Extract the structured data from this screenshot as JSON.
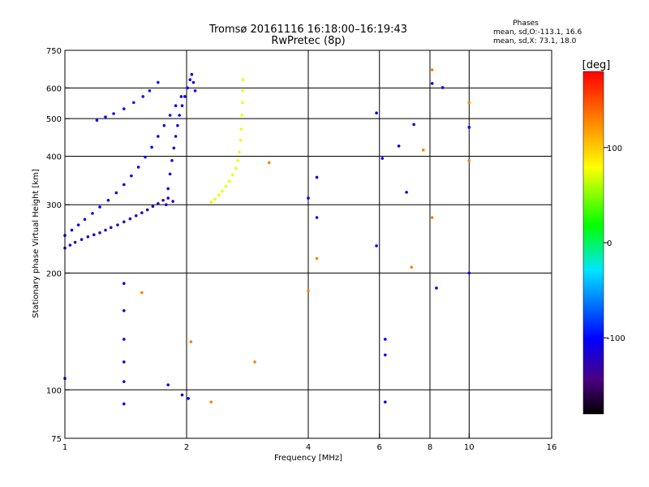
{
  "chart_data": {
    "type": "scatter",
    "title": "Tromsø 20161116 16:18:00–16:19:43",
    "subtitle": "RwPretec (8p)",
    "xlabel": "Frequency [MHz]",
    "ylabel": "Stationary phase Virtual Height [km]",
    "x_scale": "log",
    "y_scale": "log",
    "xlim": [
      1,
      16
    ],
    "ylim": [
      75,
      750
    ],
    "x_ticks": [
      1,
      2,
      4,
      6,
      8,
      10,
      16
    ],
    "x_tick_labels": [
      "1",
      "2",
      "4",
      "6",
      "8",
      "10",
      "16"
    ],
    "y_ticks": [
      75,
      100,
      200,
      300,
      400,
      500,
      600,
      750
    ],
    "y_tick_labels": [
      "75",
      "100",
      "200",
      "300",
      "400",
      "500",
      "600",
      "750"
    ],
    "grid_x": [
      2,
      4,
      6,
      8,
      10
    ],
    "grid_y": [
      100,
      200,
      300,
      400,
      500,
      600
    ],
    "phases_box": {
      "header": "Phases",
      "line1": "mean, sd,O:-113.1, 16.6",
      "line2": "mean, sd,X:  73.1, 18.0"
    },
    "colorbar": {
      "label": "[deg]",
      "range": [
        -180,
        180
      ],
      "ticks": [
        100,
        0,
        -100
      ],
      "tick_labels": [
        "100",
        "0",
        "-100"
      ]
    },
    "series": [
      {
        "trace": "O-mode lower arc",
        "phase": -125,
        "points": [
          [
            1.0,
            232
          ],
          [
            1.03,
            236
          ],
          [
            1.06,
            240
          ],
          [
            1.1,
            244
          ],
          [
            1.14,
            248
          ],
          [
            1.18,
            251
          ],
          [
            1.22,
            254
          ],
          [
            1.26,
            258
          ],
          [
            1.3,
            262
          ],
          [
            1.35,
            266
          ],
          [
            1.4,
            271
          ],
          [
            1.45,
            276
          ],
          [
            1.5,
            281
          ],
          [
            1.55,
            286
          ],
          [
            1.6,
            291
          ],
          [
            1.65,
            297
          ],
          [
            1.7,
            302
          ],
          [
            1.75,
            308
          ],
          [
            1.8,
            312
          ],
          [
            1.85,
            306
          ]
        ]
      },
      {
        "trace": "O-mode upper arc",
        "phase": -100,
        "points": [
          [
            1.0,
            250
          ],
          [
            1.04,
            258
          ],
          [
            1.08,
            266
          ],
          [
            1.12,
            275
          ],
          [
            1.17,
            285
          ],
          [
            1.22,
            296
          ],
          [
            1.28,
            308
          ],
          [
            1.34,
            322
          ],
          [
            1.4,
            338
          ],
          [
            1.46,
            356
          ],
          [
            1.52,
            375
          ],
          [
            1.58,
            398
          ],
          [
            1.64,
            422
          ],
          [
            1.7,
            450
          ],
          [
            1.76,
            480
          ],
          [
            1.82,
            510
          ],
          [
            1.88,
            540
          ],
          [
            1.94,
            570
          ]
        ]
      },
      {
        "trace": "O-mode vertical band",
        "phase": -110,
        "points": [
          [
            1.78,
            300
          ],
          [
            1.8,
            330
          ],
          [
            1.82,
            360
          ],
          [
            1.84,
            390
          ],
          [
            1.86,
            420
          ],
          [
            1.88,
            450
          ],
          [
            1.9,
            480
          ],
          [
            1.92,
            510
          ],
          [
            1.95,
            540
          ],
          [
            1.98,
            570
          ],
          [
            2.01,
            600
          ],
          [
            2.04,
            630
          ],
          [
            2.06,
            650
          ],
          [
            2.08,
            620
          ],
          [
            2.1,
            590
          ]
        ]
      },
      {
        "trace": "O-mode top branch",
        "phase": -95,
        "points": [
          [
            1.2,
            495
          ],
          [
            1.26,
            505
          ],
          [
            1.32,
            515
          ],
          [
            1.4,
            530
          ],
          [
            1.48,
            550
          ],
          [
            1.56,
            570
          ],
          [
            1.62,
            590
          ],
          [
            1.7,
            620
          ]
        ]
      },
      {
        "trace": "X-mode cluster",
        "phase": 75,
        "points": [
          [
            2.3,
            305
          ],
          [
            2.35,
            310
          ],
          [
            2.4,
            318
          ],
          [
            2.45,
            325
          ],
          [
            2.5,
            335
          ],
          [
            2.55,
            345
          ],
          [
            2.6,
            358
          ],
          [
            2.65,
            372
          ],
          [
            2.68,
            390
          ],
          [
            2.7,
            410
          ],
          [
            2.72,
            440
          ],
          [
            2.73,
            470
          ],
          [
            2.74,
            510
          ],
          [
            2.75,
            550
          ],
          [
            2.75,
            590
          ],
          [
            2.76,
            630
          ]
        ]
      },
      {
        "trace": "scattered echoes",
        "phase": -105,
        "points": [
          [
            1.4,
            188
          ],
          [
            1.4,
            160
          ],
          [
            1.4,
            135
          ],
          [
            1.4,
            118
          ],
          [
            1.4,
            105
          ],
          [
            1.4,
            92
          ],
          [
            1.0,
            107
          ],
          [
            1.8,
            103
          ],
          [
            1.95,
            97
          ],
          [
            2.02,
            95
          ],
          [
            6.2,
            135
          ],
          [
            6.2,
            123
          ],
          [
            6.2,
            93
          ],
          [
            4.0,
            312
          ],
          [
            4.2,
            278
          ],
          [
            4.2,
            353
          ],
          [
            5.9,
            235
          ],
          [
            7.0,
            323
          ],
          [
            7.3,
            483
          ],
          [
            8.1,
            616
          ],
          [
            8.3,
            183
          ],
          [
            8.6,
            601
          ],
          [
            6.7,
            425
          ],
          [
            6.1,
            395
          ],
          [
            5.9,
            517
          ],
          [
            10.0,
            475
          ],
          [
            10.0,
            200
          ]
        ]
      },
      {
        "trace": "scattered warm echoes",
        "phase": 130,
        "points": [
          [
            1.55,
            178
          ],
          [
            2.05,
            133
          ],
          [
            2.3,
            93
          ],
          [
            4.2,
            218
          ],
          [
            8.1,
            278
          ],
          [
            10.0,
            550
          ],
          [
            8.1,
            668
          ],
          [
            7.7,
            415
          ],
          [
            4.0,
            180
          ],
          [
            2.95,
            118
          ],
          [
            3.2,
            385
          ],
          [
            7.2,
            207
          ],
          [
            10.0,
            390
          ]
        ]
      }
    ]
  }
}
